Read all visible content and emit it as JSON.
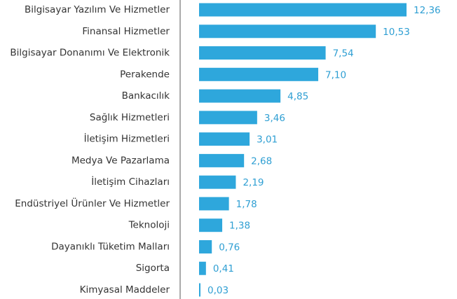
{
  "chart_data": {
    "type": "bar",
    "orientation": "horizontal",
    "color": "#2ea7dc",
    "categories": [
      "Bilgisayar Yazılım Ve Hizmetler",
      "Finansal Hizmetler",
      "Bilgisayar Donanımı Ve Elektronik",
      "Perakende",
      "Bankacılık",
      "Sağlık Hizmetleri",
      "İletişim Hizmetleri",
      "Medya Ve Pazarlama",
      "İletişim Cihazları",
      "Endüstriyel Ürünler Ve Hizmetler",
      "Teknoloji",
      "Dayanıklı Tüketim Malları",
      "Sigorta",
      "Kimyasal Maddeler"
    ],
    "values": [
      12.36,
      10.53,
      7.54,
      7.1,
      4.85,
      3.46,
      3.01,
      2.68,
      2.19,
      1.78,
      1.38,
      0.76,
      0.41,
      0.03
    ],
    "value_labels": [
      "12,36",
      "10,53",
      "7,54",
      "7,10",
      "4,85",
      "3,46",
      "3,01",
      "2,68",
      "2,19",
      "1,78",
      "1,38",
      "0,76",
      "0,41",
      "0,03"
    ]
  }
}
